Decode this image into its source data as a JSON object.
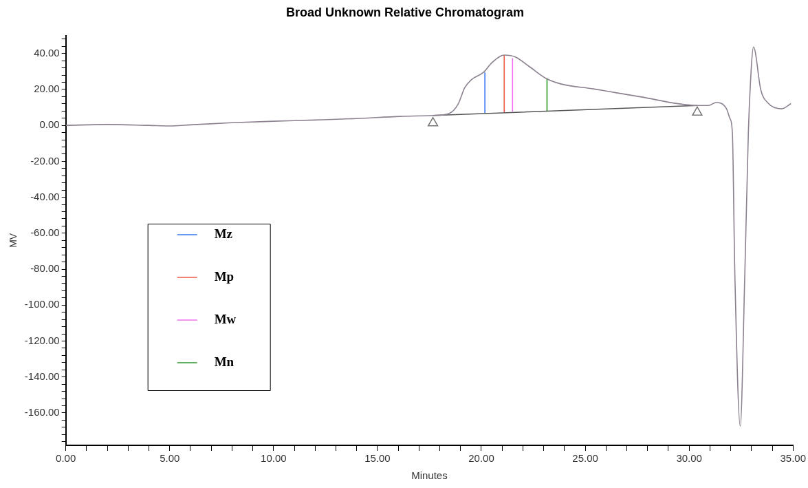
{
  "chart_data": {
    "type": "line",
    "title": "Broad Unknown Relative Chromatogram",
    "xlabel": "Minutes",
    "ylabel": "MV",
    "xlim": [
      0,
      35
    ],
    "ylim": [
      -178,
      50
    ],
    "xticks": [
      {
        "value": 0,
        "label": "0.00"
      },
      {
        "value": 1,
        "label": null
      },
      {
        "value": 2,
        "label": null
      },
      {
        "value": 3,
        "label": null
      },
      {
        "value": 4,
        "label": null
      },
      {
        "value": 5,
        "label": "5.00"
      },
      {
        "value": 6,
        "label": null
      },
      {
        "value": 7,
        "label": null
      },
      {
        "value": 8,
        "label": null
      },
      {
        "value": 9,
        "label": null
      },
      {
        "value": 10,
        "label": "10.00"
      },
      {
        "value": 11,
        "label": null
      },
      {
        "value": 12,
        "label": null
      },
      {
        "value": 13,
        "label": null
      },
      {
        "value": 14,
        "label": null
      },
      {
        "value": 15,
        "label": "15.00"
      },
      {
        "value": 16,
        "label": null
      },
      {
        "value": 17,
        "label": null
      },
      {
        "value": 18,
        "label": null
      },
      {
        "value": 19,
        "label": null
      },
      {
        "value": 20,
        "label": "20.00"
      },
      {
        "value": 21,
        "label": null
      },
      {
        "value": 22,
        "label": null
      },
      {
        "value": 23,
        "label": null
      },
      {
        "value": 24,
        "label": null
      },
      {
        "value": 25,
        "label": "25.00"
      },
      {
        "value": 26,
        "label": null
      },
      {
        "value": 27,
        "label": null
      },
      {
        "value": 28,
        "label": null
      },
      {
        "value": 29,
        "label": null
      },
      {
        "value": 30,
        "label": "30.00"
      },
      {
        "value": 31,
        "label": null
      },
      {
        "value": 32,
        "label": null
      },
      {
        "value": 33,
        "label": null
      },
      {
        "value": 34,
        "label": null
      },
      {
        "value": 35,
        "label": "35.00"
      }
    ],
    "yticks": [
      {
        "value": -176,
        "label": null
      },
      {
        "value": -172,
        "label": null
      },
      {
        "value": -168,
        "label": null
      },
      {
        "value": -164,
        "label": null
      },
      {
        "value": -160,
        "label": "-160.00"
      },
      {
        "value": -156,
        "label": null
      },
      {
        "value": -152,
        "label": null
      },
      {
        "value": -148,
        "label": null
      },
      {
        "value": -144,
        "label": null
      },
      {
        "value": -140,
        "label": "-140.00"
      },
      {
        "value": -136,
        "label": null
      },
      {
        "value": -132,
        "label": null
      },
      {
        "value": -128,
        "label": null
      },
      {
        "value": -124,
        "label": null
      },
      {
        "value": -120,
        "label": "-120.00"
      },
      {
        "value": -116,
        "label": null
      },
      {
        "value": -112,
        "label": null
      },
      {
        "value": -108,
        "label": null
      },
      {
        "value": -104,
        "label": null
      },
      {
        "value": -100,
        "label": "-100.00"
      },
      {
        "value": -96,
        "label": null
      },
      {
        "value": -92,
        "label": null
      },
      {
        "value": -88,
        "label": null
      },
      {
        "value": -84,
        "label": null
      },
      {
        "value": -80,
        "label": "-80.00"
      },
      {
        "value": -76,
        "label": null
      },
      {
        "value": -72,
        "label": null
      },
      {
        "value": -68,
        "label": null
      },
      {
        "value": -64,
        "label": null
      },
      {
        "value": -60,
        "label": "-60.00"
      },
      {
        "value": -56,
        "label": null
      },
      {
        "value": -52,
        "label": null
      },
      {
        "value": -48,
        "label": null
      },
      {
        "value": -44,
        "label": null
      },
      {
        "value": -40,
        "label": "-40.00"
      },
      {
        "value": -36,
        "label": null
      },
      {
        "value": -32,
        "label": null
      },
      {
        "value": -28,
        "label": null
      },
      {
        "value": -24,
        "label": null
      },
      {
        "value": -20,
        "label": "-20.00"
      },
      {
        "value": -16,
        "label": null
      },
      {
        "value": -12,
        "label": null
      },
      {
        "value": -8,
        "label": null
      },
      {
        "value": -4,
        "label": null
      },
      {
        "value": 0,
        "label": "0.00"
      },
      {
        "value": 4,
        "label": null
      },
      {
        "value": 8,
        "label": null
      },
      {
        "value": 12,
        "label": null
      },
      {
        "value": 16,
        "label": null
      },
      {
        "value": 20,
        "label": "20.00"
      },
      {
        "value": 24,
        "label": null
      },
      {
        "value": 28,
        "label": null
      },
      {
        "value": 32,
        "label": null
      },
      {
        "value": 36,
        "label": null
      },
      {
        "value": 40,
        "label": "40.00"
      },
      {
        "value": 44,
        "label": null
      },
      {
        "value": 48,
        "label": null
      }
    ],
    "grid": false,
    "legend": "bottom left",
    "marker": "none",
    "line_style": "solid",
    "series": [
      {
        "color": "#8c8190",
        "x": [
          0,
          2,
          4,
          5,
          6,
          8,
          10,
          12,
          14,
          16.1,
          17.67,
          18.44,
          18.88,
          19.2,
          19.54,
          20.1,
          20.5,
          21.1,
          21.65,
          22.3,
          23.1,
          23.85,
          25.4,
          26.06,
          27.6,
          30.39,
          30.92,
          31.3,
          31.8,
          31.96,
          32.08,
          32.2,
          32.46,
          32.68,
          32.85,
          32.9,
          33.1,
          33.45,
          33.79,
          34.45,
          34.9
        ],
        "values": [
          0,
          0.5,
          0,
          -0.3,
          0.3,
          1.5,
          2.3,
          3,
          3.8,
          5,
          5.5,
          6.6,
          11.8,
          21,
          25.6,
          29.5,
          34.8,
          39.1,
          38,
          32.8,
          26.2,
          23,
          20.3,
          19,
          16,
          11.1,
          11.1,
          12.7,
          9.2,
          3.9,
          -3.9,
          -82.7,
          -167.3,
          -82.7,
          -3.9,
          11.8,
          43.6,
          19.7,
          12.5,
          9.2,
          12.1
        ]
      },
      {
        "type": "line",
        "color": "#555555",
        "x": [
          17.67,
          30.39
        ],
        "values": [
          5.5,
          11.1
        ]
      },
      {
        "type": "line",
        "name": "Mz",
        "color": "#3a78f0",
        "x": [
          20.17,
          20.17
        ],
        "values": [
          6.8,
          29.5
        ]
      },
      {
        "type": "line",
        "name": "Mp",
        "color": "#f05a4a",
        "x": [
          21.1,
          21.1
        ],
        "values": [
          7.2,
          39.1
        ]
      },
      {
        "type": "line",
        "name": "Mw",
        "color": "#f070f0",
        "x": [
          21.5,
          21.5
        ],
        "values": [
          7.6,
          37.4
        ]
      },
      {
        "type": "line",
        "name": "Mn",
        "color": "#2a9a2a",
        "x": [
          23.16,
          23.16
        ],
        "values": [
          7.9,
          26.2
        ]
      },
      {
        "type": "scatter",
        "marker": "triangle",
        "color": "#777777",
        "x": [
          17.67,
          30.39
        ],
        "values": [
          1.3,
          7.2
        ]
      }
    ]
  }
}
